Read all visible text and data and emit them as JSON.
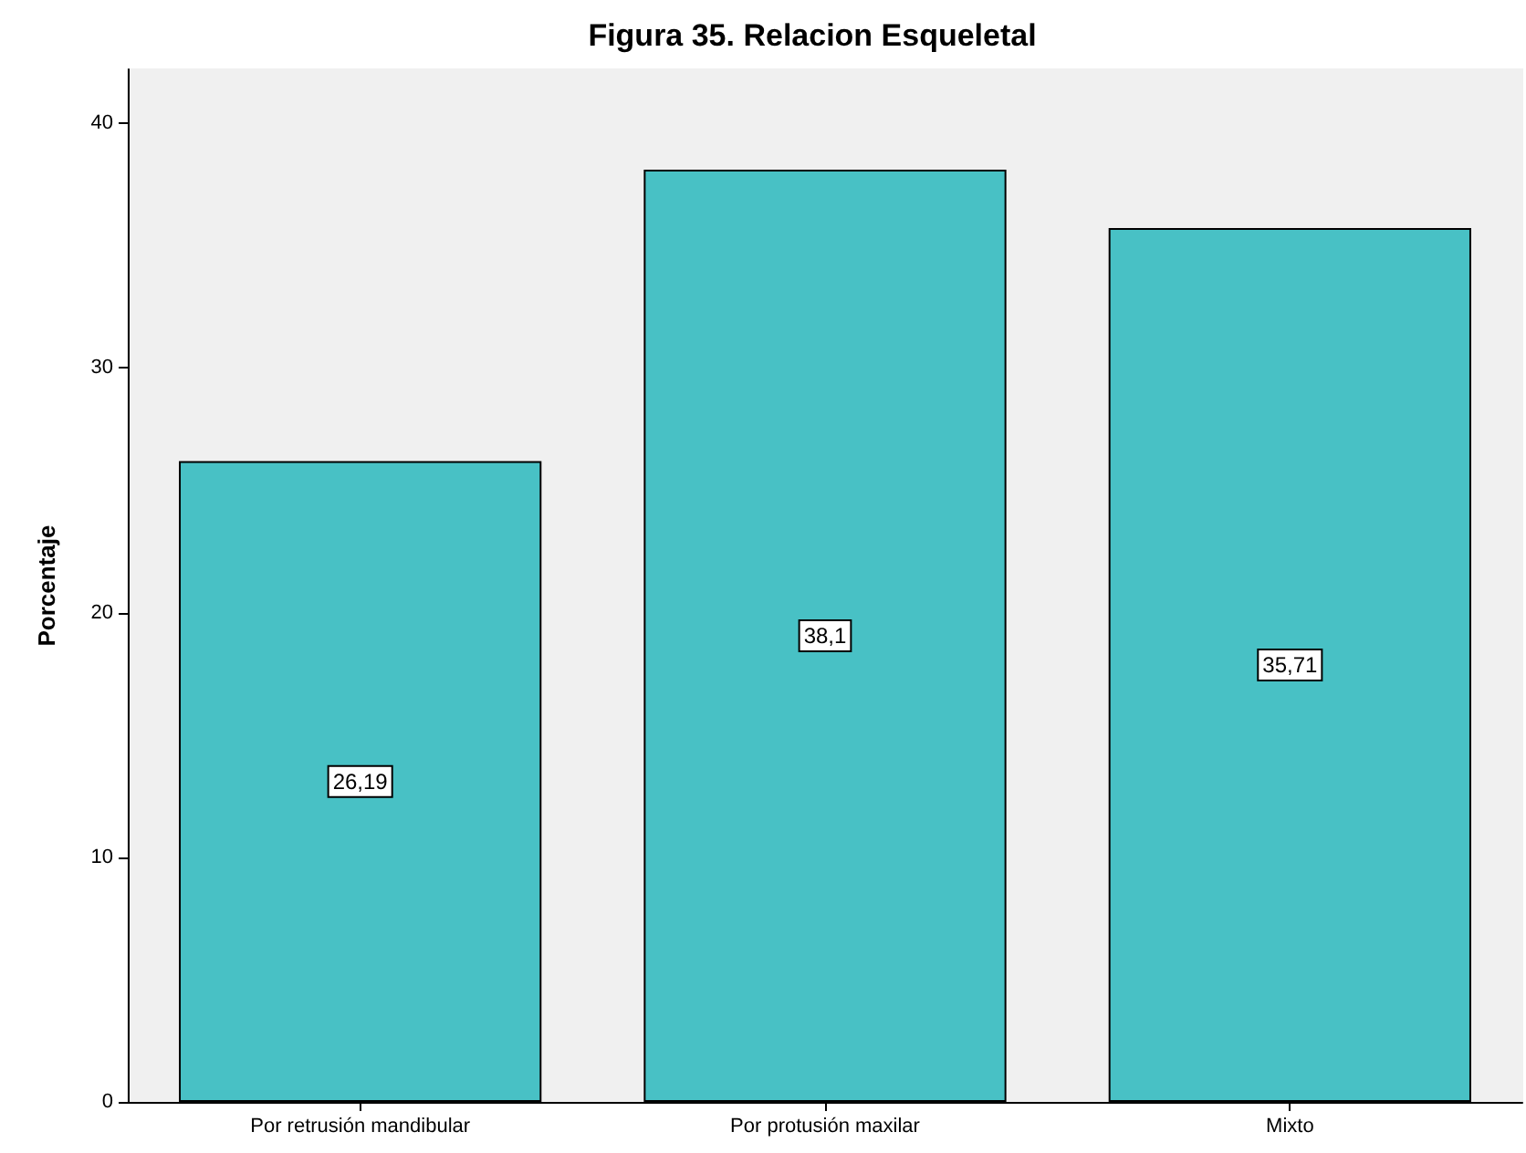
{
  "chart_data": {
    "type": "bar",
    "title": "Figura 35. Relacion Esqueletal",
    "ylabel": "Porcentaje",
    "categories": [
      "Por retrusión mandibular",
      "Por protusión maxilar",
      "Mixto"
    ],
    "values": [
      26.19,
      38.1,
      35.71
    ],
    "value_labels": [
      "26,19",
      "38,1",
      "35,71"
    ],
    "color": "#48c1c5",
    "ylim": [
      0,
      42.2
    ],
    "yticks": [
      0,
      10,
      20,
      30,
      40
    ],
    "grid": false
  }
}
